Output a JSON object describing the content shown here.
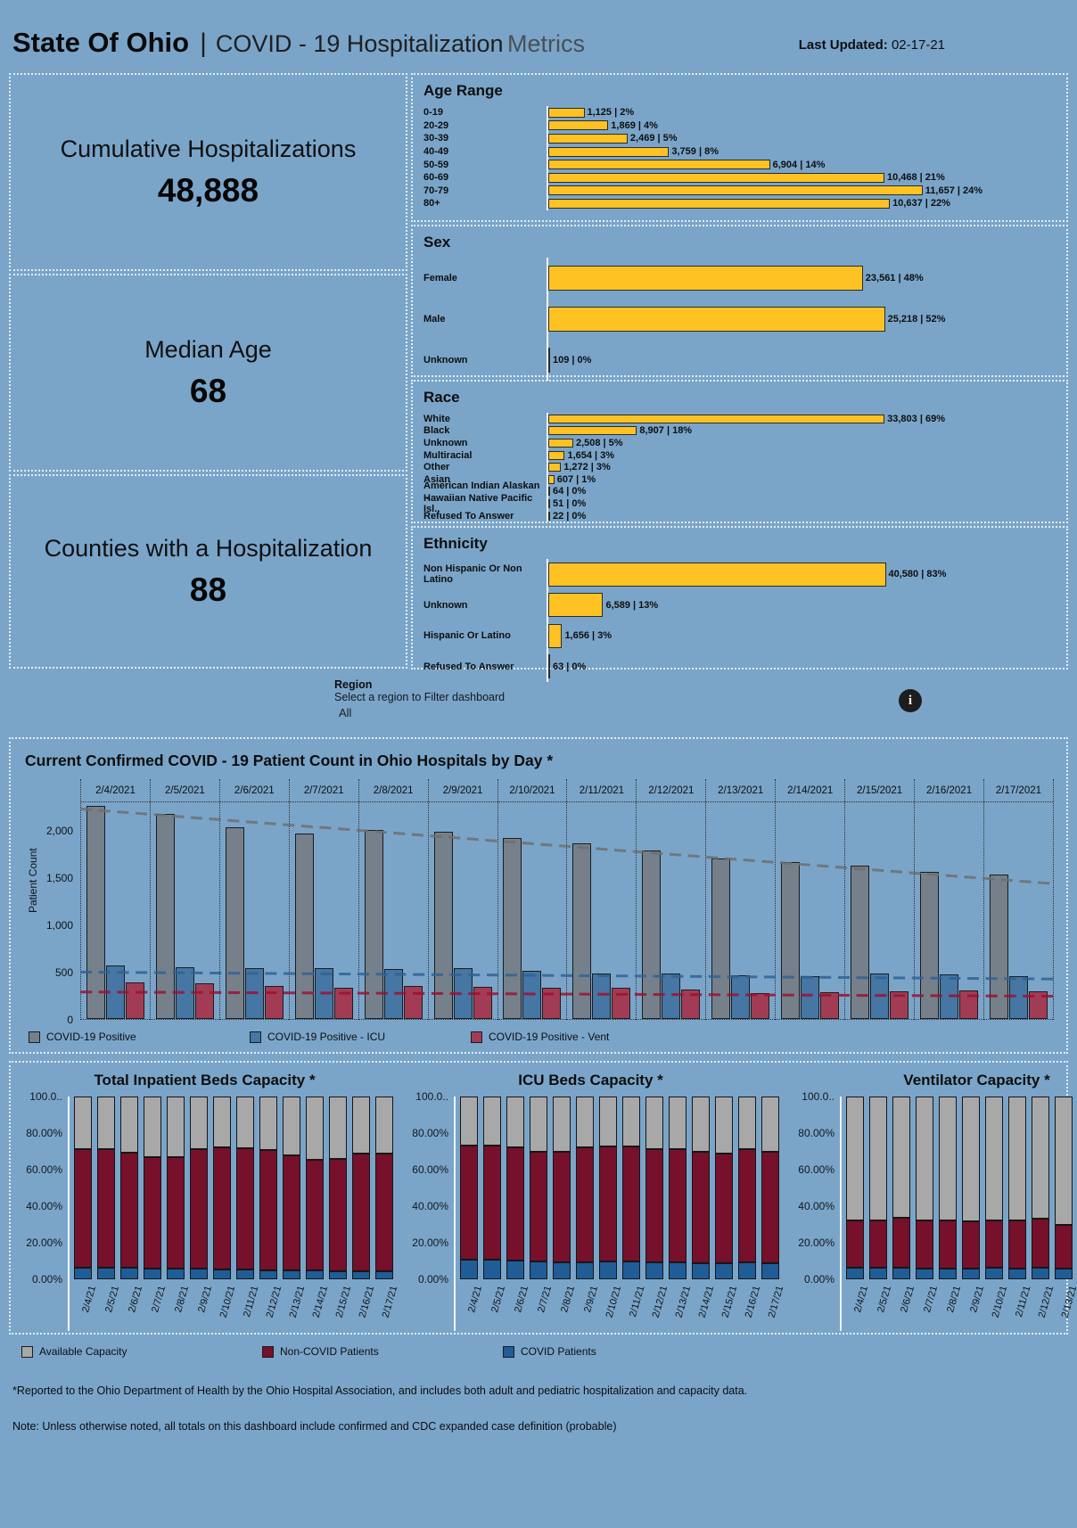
{
  "header": {
    "title_main": "State Of Ohio",
    "subtitle_strong": "COVID - 19 Hospitalization",
    "subtitle_light": "Metrics",
    "last_updated_label": "Last Updated:",
    "last_updated_value": "02-17-21"
  },
  "kpis": [
    {
      "label": "Cumulative Hospitalizations",
      "value": "48,888"
    },
    {
      "label": "Median Age",
      "value": "68"
    },
    {
      "label": "Counties with a Hospitalization",
      "value": "88"
    }
  ],
  "region": {
    "label": "Region",
    "hint": "Select a region to Filter dashboard",
    "value": "All",
    "info_icon": "i"
  },
  "colors": {
    "background": "#7aa5c9",
    "gold_bar": "#ffc223",
    "daily_positive": "#75808a",
    "daily_icu": "#4576a4",
    "daily_vent": "#a23c55",
    "capacity_available": "#a8a8a8",
    "capacity_noncovid": "#76102b",
    "capacity_covid": "#205c95"
  },
  "daily_legend": [
    {
      "label": "COVID-19 Positive",
      "color": "#75808a"
    },
    {
      "label": "COVID-19 Positive - ICU",
      "color": "#4576a4"
    },
    {
      "label": "COVID-19 Positive - Vent",
      "color": "#a23c55"
    }
  ],
  "capacity_legend": [
    {
      "label": "Available Capacity",
      "color": "#a8a8a8"
    },
    {
      "label": "Non-COVID Patients",
      "color": "#76102b"
    },
    {
      "label": "COVID Patients",
      "color": "#205c95"
    }
  ],
  "footnotes": [
    "*Reported to the Ohio Department of Health by the Ohio Hospital Association, and includes both adult and pediatric hospitalization and capacity data.",
    "Note: Unless otherwise noted, all totals on this dashboard include confirmed and CDC expanded case definition (probable)"
  ],
  "chart_data": [
    {
      "id": "age_range",
      "type": "bar",
      "orientation": "horizontal",
      "title": "Age Range",
      "categories": [
        "0-19",
        "20-29",
        "30-39",
        "40-49",
        "50-59",
        "60-69",
        "70-79",
        "80+"
      ],
      "values": [
        1125,
        1869,
        2469,
        3759,
        6904,
        10468,
        11657,
        10637
      ],
      "labels": [
        "1,125 | 2%",
        "1,869 | 4%",
        "2,469 | 5%",
        "3,759 | 8%",
        "6,904 | 14%",
        "10,468 | 21%",
        "11,657 | 24%",
        "10,637 | 22%"
      ],
      "axis_max": 15800
    },
    {
      "id": "sex",
      "type": "bar",
      "orientation": "horizontal",
      "title": "Sex",
      "categories": [
        "Female",
        "Male",
        "Unknown"
      ],
      "values": [
        23561,
        25218,
        109
      ],
      "labels": [
        "23,561 | 48%",
        "25,218 | 52%",
        "109 | 0%"
      ],
      "axis_max": 38000
    },
    {
      "id": "race",
      "type": "bar",
      "orientation": "horizontal",
      "title": "Race",
      "categories": [
        "White",
        "Black",
        "Unknown",
        "Multiracial",
        "Other",
        "Asian",
        "American Indian Alaskan ..",
        "Hawaiian Native Pacific Isl..",
        "Refused To Answer"
      ],
      "values": [
        33803,
        8907,
        2508,
        1654,
        1272,
        607,
        64,
        51,
        22
      ],
      "labels": [
        "33,803 | 69%",
        "8,907 | 18%",
        "2,508 | 5%",
        "1,654 | 3%",
        "1,272 | 3%",
        "607 | 1%",
        "64 | 0%",
        "51 | 0%",
        "22 | 0%"
      ],
      "axis_max": 51000
    },
    {
      "id": "ethnicity",
      "type": "bar",
      "orientation": "horizontal",
      "title": "Ethnicity",
      "categories": [
        "Non Hispanic Or Non Latino",
        "Unknown",
        "Hispanic Or Latino",
        "Refused To Answer"
      ],
      "values": [
        40580,
        6589,
        1656,
        63
      ],
      "labels": [
        "40,580 | 83%",
        "6,589 | 13%",
        "1,656 | 3%",
        "63 | 0%"
      ],
      "axis_max": 61000
    },
    {
      "id": "daily_patient_count",
      "type": "bar",
      "grouped": true,
      "title": "Current Confirmed COVID - 19 Patient Count in Ohio Hospitals by Day *",
      "ylabel": "Patient Count",
      "ylim": [
        0,
        2300
      ],
      "yticks": [
        {
          "label": "2,000",
          "value": 2000
        },
        {
          "label": "1,500",
          "value": 1500
        },
        {
          "label": "1,000",
          "value": 1000
        },
        {
          "label": "500",
          "value": 500
        },
        {
          "label": "0",
          "value": 0
        }
      ],
      "x": [
        "2/4/2021",
        "2/5/2021",
        "2/6/2021",
        "2/7/2021",
        "2/8/2021",
        "2/9/2021",
        "2/10/2021",
        "2/11/2021",
        "2/12/2021",
        "2/13/2021",
        "2/14/2021",
        "2/15/2021",
        "2/16/2021",
        "2/17/2021"
      ],
      "series": [
        {
          "name": "COVID-19 Positive",
          "color": "#75808a",
          "values": [
            2250,
            2170,
            2030,
            1960,
            2000,
            1975,
            1915,
            1855,
            1780,
            1700,
            1660,
            1620,
            1555,
            1530
          ]
        },
        {
          "name": "COVID-19 Positive - ICU",
          "color": "#4576a4",
          "values": [
            565,
            550,
            540,
            535,
            530,
            540,
            510,
            480,
            480,
            460,
            455,
            480,
            470,
            450
          ]
        },
        {
          "name": "COVID-19 Positive - Vent",
          "color": "#a23c55",
          "values": [
            390,
            375,
            350,
            330,
            345,
            335,
            330,
            330,
            310,
            270,
            280,
            290,
            300,
            290
          ]
        }
      ],
      "trendlines": [
        {
          "series": "COVID-19 Positive",
          "color": "#6f6f6f",
          "start": 2230,
          "end": 1440
        },
        {
          "series": "COVID-19 Positive - ICU",
          "color": "#2f6395",
          "start": 505,
          "end": 432
        },
        {
          "series": "COVID-19 Positive - Vent",
          "color": "#9c1230",
          "start": 295,
          "end": 250
        }
      ]
    },
    {
      "id": "inpatient_beds_capacity",
      "type": "stacked_bar_percent",
      "title": "Total Inpatient Beds Capacity *",
      "yticks": [
        "100.0..",
        "80.00%",
        "60.00%",
        "40.00%",
        "20.00%",
        "0.00%"
      ],
      "x": [
        "2/4/21",
        "2/5/21",
        "2/6/21",
        "2/7/21",
        "2/8/21",
        "2/9/21",
        "2/10/21",
        "2/11/21",
        "2/12/21",
        "2/13/21",
        "2/14/21",
        "2/15/21",
        "2/16/21",
        "2/17/21"
      ],
      "series": [
        {
          "name": "COVID Patients",
          "color": "#205c95",
          "values": [
            6.5,
            6.4,
            6.2,
            6.0,
            6.0,
            5.8,
            5.6,
            5.4,
            5.1,
            4.9,
            4.7,
            4.6,
            4.4,
            4.3
          ]
        },
        {
          "name": "Non-COVID Patients",
          "color": "#76102b",
          "values": [
            64.5,
            64.6,
            63.3,
            61.0,
            61.0,
            65.2,
            66.4,
            66.1,
            65.4,
            63.1,
            60.8,
            61.4,
            64.6,
            64.7
          ]
        },
        {
          "name": "Available Capacity",
          "color": "#a8a8a8",
          "values": [
            29.0,
            29.0,
            30.5,
            33.0,
            33.0,
            29.0,
            28.0,
            28.5,
            29.5,
            32.0,
            34.5,
            34.0,
            31.0,
            31.0
          ]
        }
      ]
    },
    {
      "id": "icu_beds_capacity",
      "type": "stacked_bar_percent",
      "title": "ICU Beds Capacity *",
      "yticks": [
        "100.0..",
        "80.00%",
        "60.00%",
        "40.00%",
        "20.00%",
        "0.00%"
      ],
      "x": [
        "2/4/21",
        "2/5/21",
        "2/6/21",
        "2/7/21",
        "2/8/21",
        "2/9/21",
        "2/10/21",
        "2/11/21",
        "2/12/21",
        "2/13/21",
        "2/14/21",
        "2/15/21",
        "2/16/21",
        "2/17/21"
      ],
      "series": [
        {
          "name": "COVID Patients",
          "color": "#205c95",
          "values": [
            10.5,
            10.5,
            10.0,
            10.0,
            9.5,
            9.5,
            10.0,
            10.0,
            9.5,
            9.5,
            9.0,
            9.0,
            9.5,
            9.0
          ]
        },
        {
          "name": "Non-COVID Patients",
          "color": "#76102b",
          "values": [
            62.5,
            62.5,
            62.0,
            60.0,
            60.5,
            62.5,
            62.5,
            62.5,
            61.5,
            61.5,
            61.0,
            60.0,
            61.5,
            61.0
          ]
        },
        {
          "name": "Available Capacity",
          "color": "#a8a8a8",
          "values": [
            27.0,
            27.0,
            28.0,
            30.0,
            30.0,
            28.0,
            27.5,
            27.5,
            29.0,
            29.0,
            30.0,
            31.0,
            29.0,
            30.0
          ]
        }
      ]
    },
    {
      "id": "ventilator_capacity",
      "type": "stacked_bar_percent",
      "title": "Ventilator Capacity *",
      "yticks": [
        "100.0..",
        "80.00%",
        "60.00%",
        "40.00%",
        "20.00%",
        "0.00%"
      ],
      "x": [
        "2/4/21",
        "2/5/21",
        "2/6/21",
        "2/7/21",
        "2/8/21",
        "2/9/21",
        "2/10/21",
        "2/11/21",
        "2/12/21",
        "2/13/21",
        "2/14/21",
        "2/15/21",
        "2/16/21",
        "2/17/21"
      ],
      "series": [
        {
          "name": "COVID Patients",
          "color": "#205c95",
          "values": [
            6.5,
            6.5,
            6.5,
            6.0,
            6.0,
            6.0,
            6.5,
            6.0,
            6.5,
            6.0,
            6.0,
            6.5,
            6.5,
            6.5
          ]
        },
        {
          "name": "Non-COVID Patients",
          "color": "#76102b",
          "values": [
            25.5,
            25.5,
            27.0,
            26.0,
            26.0,
            25.5,
            25.5,
            26.0,
            26.5,
            24.0,
            24.5,
            25.5,
            25.5,
            25.5
          ]
        },
        {
          "name": "Available Capacity",
          "color": "#a8a8a8",
          "values": [
            68.0,
            68.0,
            66.5,
            68.0,
            68.0,
            68.5,
            68.0,
            68.0,
            67.0,
            70.0,
            69.5,
            68.0,
            68.0,
            68.0
          ]
        }
      ]
    }
  ]
}
